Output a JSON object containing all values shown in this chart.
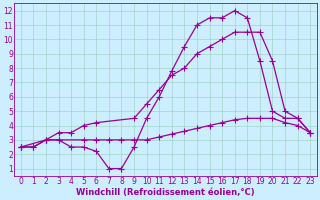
{
  "xlabel": "Windchill (Refroidissement éolien,°C)",
  "bg_color": "#cceeff",
  "line_color": "#990099",
  "grid_color": "#99ccbb",
  "xlim_min": -0.5,
  "xlim_max": 23.5,
  "ylim_min": 0.5,
  "ylim_max": 12.5,
  "xticks": [
    0,
    1,
    2,
    3,
    4,
    5,
    6,
    7,
    8,
    9,
    10,
    11,
    12,
    13,
    14,
    15,
    16,
    17,
    18,
    19,
    20,
    21,
    22,
    23
  ],
  "yticks": [
    1,
    2,
    3,
    4,
    5,
    6,
    7,
    8,
    9,
    10,
    11,
    12
  ],
  "line1_x": [
    0,
    1,
    2,
    3,
    5,
    6,
    7,
    8,
    9,
    10,
    11,
    12,
    13,
    14,
    15,
    16,
    17,
    18,
    19,
    20,
    21,
    22,
    23
  ],
  "line1_y": [
    2.5,
    2.5,
    3.0,
    3.0,
    3.0,
    3.0,
    3.0,
    3.0,
    3.0,
    3.0,
    3.2,
    3.4,
    3.6,
    3.8,
    4.0,
    4.2,
    4.4,
    4.5,
    4.5,
    4.5,
    4.2,
    4.0,
    3.5
  ],
  "line2_x": [
    0,
    1,
    2,
    3,
    4,
    5,
    6,
    7,
    8,
    9,
    10,
    11,
    12,
    13,
    14,
    15,
    16,
    17,
    18,
    19,
    20,
    21,
    22,
    23
  ],
  "line2_y": [
    2.5,
    2.5,
    3.0,
    3.0,
    2.5,
    2.5,
    2.2,
    1.0,
    1.0,
    2.5,
    4.5,
    6.0,
    7.8,
    9.5,
    11.0,
    11.5,
    11.5,
    12.0,
    11.5,
    8.5,
    5.0,
    4.5,
    4.5,
    3.5
  ],
  "line3_x": [
    0,
    2,
    3,
    4,
    5,
    6,
    9,
    10,
    11,
    12,
    13,
    14,
    15,
    16,
    17,
    18,
    19,
    20,
    21,
    22,
    23
  ],
  "line3_y": [
    2.5,
    3.0,
    3.5,
    3.5,
    4.0,
    4.2,
    4.5,
    5.5,
    6.5,
    7.5,
    8.0,
    9.0,
    9.5,
    10.0,
    10.5,
    10.5,
    10.5,
    8.5,
    5.0,
    4.5,
    3.5
  ]
}
